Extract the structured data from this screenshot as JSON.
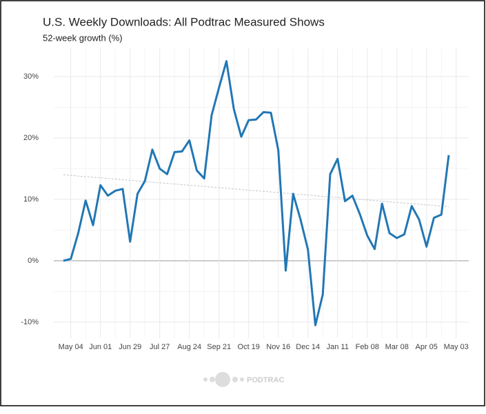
{
  "chart_data": {
    "type": "line",
    "title": "U.S. Weekly Downloads: All Podtrac Measured Shows",
    "subtitle": "52-week growth (%)",
    "x": [
      0,
      1,
      2,
      3,
      4,
      5,
      6,
      7,
      8,
      9,
      10,
      11,
      12,
      13,
      14,
      15,
      16,
      17,
      18,
      19,
      20,
      21,
      22,
      23,
      24,
      25,
      26,
      27,
      28,
      29,
      30,
      31,
      32,
      33,
      34,
      35,
      36,
      37,
      38,
      39,
      40,
      41,
      42,
      43,
      44,
      45,
      46,
      47,
      48,
      49,
      50,
      51,
      52
    ],
    "series": [
      {
        "color": "#2177b4",
        "values": [
          0,
          0.3,
          4.5,
          9.8,
          5.8,
          12.3,
          10.6,
          11.4,
          11.7,
          3.1,
          10.9,
          13.0,
          18.1,
          15.0,
          14.1,
          17.7,
          17.8,
          19.6,
          14.7,
          13.4,
          23.7,
          28.2,
          32.5,
          24.7,
          20.2,
          22.9,
          23.0,
          24.2,
          24.1,
          18.0,
          -1.6,
          10.9,
          6.7,
          1.8,
          -10.5,
          -5.5,
          14.1,
          16.6,
          9.7,
          10.6,
          7.6,
          4.1,
          1.9,
          9.3,
          4.5,
          3.7,
          4.3,
          8.9,
          6.7,
          2.3,
          7.0,
          7.5,
          17.2
        ]
      }
    ],
    "trend": {
      "x": [
        0,
        52
      ],
      "values": [
        14.0,
        8.8
      ],
      "color": "#c0c6cc"
    },
    "xlim": [
      -1.3,
      54.7
    ],
    "xticks": [
      {
        "value": 1,
        "label": "May 04"
      },
      {
        "value": 5,
        "label": "Jun 01"
      },
      {
        "value": 9,
        "label": "Jun 29"
      },
      {
        "value": 13,
        "label": "Jul 27"
      },
      {
        "value": 17,
        "label": "Aug 24"
      },
      {
        "value": 21,
        "label": "Sep 21"
      },
      {
        "value": 25,
        "label": "Oct 19"
      },
      {
        "value": 29,
        "label": "Nov 16"
      },
      {
        "value": 33,
        "label": "Dec 14"
      },
      {
        "value": 37,
        "label": "Jan 11"
      },
      {
        "value": 41,
        "label": "Feb 08"
      },
      {
        "value": 45,
        "label": "Mar 08"
      },
      {
        "value": 49,
        "label": "Apr 05"
      },
      {
        "value": 53,
        "label": "May 03"
      }
    ],
    "ylim": [
      -12.6,
      34.6
    ],
    "yticks": [
      {
        "value": -10,
        "label": "-10%"
      },
      {
        "value": 0,
        "label": "0%"
      },
      {
        "value": 10,
        "label": "10%"
      },
      {
        "value": 20,
        "label": "20%"
      },
      {
        "value": 30,
        "label": "30%"
      }
    ],
    "grid": true,
    "logo": "PODTRAC"
  }
}
